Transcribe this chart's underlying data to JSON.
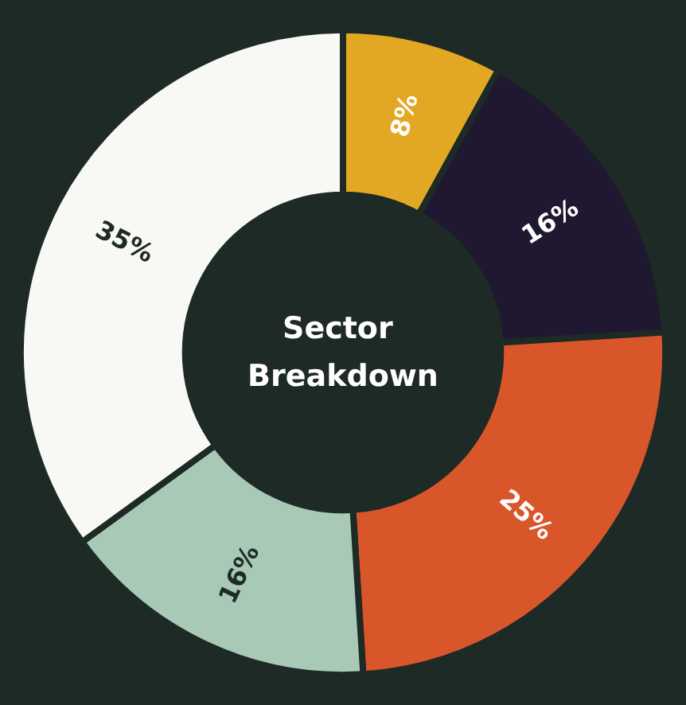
{
  "chart_data": {
    "type": "donut",
    "title": "Sector Breakdown",
    "categories": [
      null,
      null,
      null,
      null,
      null
    ],
    "values": [
      8,
      16,
      25,
      16,
      35
    ],
    "value_labels": [
      "8%",
      "16%",
      "25%",
      "16%",
      "35%"
    ],
    "colors": [
      "#e2a823",
      "#1f1830",
      "#d9562b",
      "#a8c9b6",
      "#f8f8f4"
    ]
  }
}
